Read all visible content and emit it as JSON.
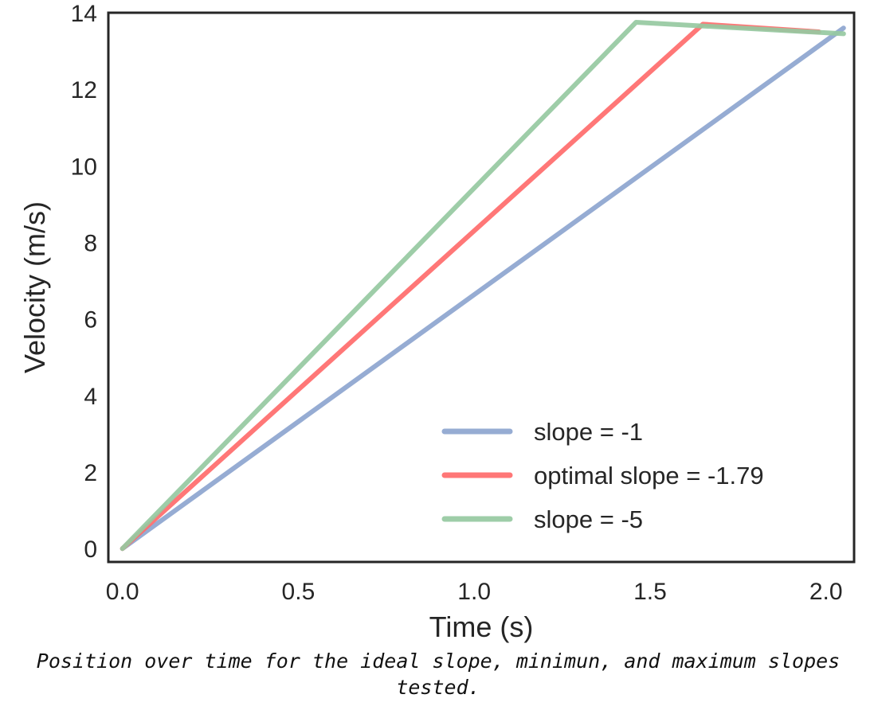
{
  "chart_data": {
    "type": "line",
    "xlabel": "Time (s)",
    "ylabel": "Velocity (m/s)",
    "xlim": [
      -0.04,
      2.08
    ],
    "ylim": [
      -0.35,
      14
    ],
    "xticks": [
      0.0,
      0.5,
      1.0,
      1.5,
      2.0
    ],
    "xtick_labels": [
      "0.0",
      "0.5",
      "1.0",
      "1.5",
      "2.0"
    ],
    "yticks": [
      0,
      2,
      4,
      6,
      8,
      10,
      12,
      14
    ],
    "ytick_labels": [
      "0",
      "2",
      "4",
      "6",
      "8",
      "10",
      "12",
      "14"
    ],
    "grid": false,
    "legend_position": "lower-right",
    "series": [
      {
        "name": "slope = -1",
        "color": "#8da5cf",
        "x": [
          0.0,
          2.05
        ],
        "y": [
          0.0,
          13.6
        ]
      },
      {
        "name": "optimal slope = -1.79",
        "color": "#ff6b6b",
        "x": [
          0.0,
          1.65,
          1.98
        ],
        "y": [
          0.0,
          13.7,
          13.5
        ]
      },
      {
        "name": "slope = -5",
        "color": "#96c9a1",
        "x": [
          0.0,
          1.46,
          2.05
        ],
        "y": [
          0.0,
          13.75,
          13.45
        ]
      }
    ]
  },
  "caption": "Position over time for the ideal slope, minimun, and maximum slopes tested."
}
